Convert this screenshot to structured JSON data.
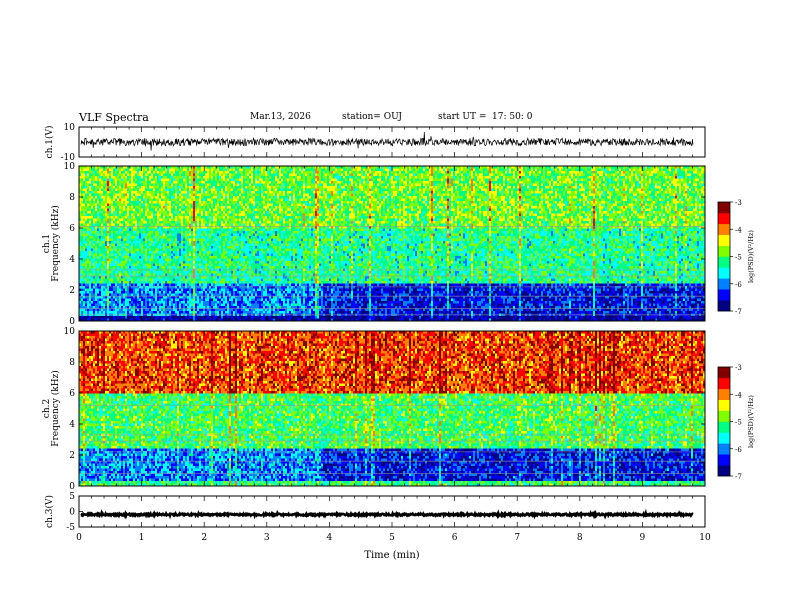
{
  "header": {
    "title": "VLF Spectra",
    "date": "Mar.13, 2026",
    "station": "station= OUJ",
    "start_label": "start  UT  =",
    "start_time": "17: 50: 0"
  },
  "colors": {
    "colormap": [
      "#000080",
      "#0000ff",
      "#0080ff",
      "#00ffff",
      "#00ff80",
      "#80ff00",
      "#ffff00",
      "#ff8000",
      "#ff0000",
      "#800000"
    ]
  },
  "chart_data": [
    {
      "type": "line",
      "panel": "ch1-waveform",
      "ylabel": "ch.1(V)",
      "ylim": [
        -10,
        10
      ],
      "yticks": [
        "10",
        "-10"
      ],
      "xlim": [
        0,
        10
      ],
      "series": [
        {
          "name": "ch.1",
          "mean": 0,
          "amplitude": 2.5
        }
      ]
    },
    {
      "type": "heatmap",
      "panel": "ch1-spectrogram",
      "ylabel": "ch.1\nFrequency (kHz)",
      "ylim": [
        0,
        10
      ],
      "yticks": [
        "0",
        "2",
        "4",
        "6",
        "8",
        "10"
      ],
      "xlim": [
        0,
        10
      ],
      "colorbar": {
        "label": "log(PSD)(V²/Hz)",
        "ticks": [
          "-3",
          "-4",
          "-5",
          "-6",
          "-7"
        ],
        "range": [
          -7,
          -3
        ]
      },
      "bands": [
        {
          "f_range": [
            0,
            0.4
          ],
          "log_psd": -6.8
        },
        {
          "f_range": [
            0.4,
            2.5
          ],
          "log_psd": -6.0
        },
        {
          "f_range": [
            2.5,
            6
          ],
          "log_psd": -5.3
        },
        {
          "f_range": [
            6,
            10
          ],
          "log_psd": -4.9
        }
      ],
      "lines_khz": [
        0.4,
        0.8,
        1.6,
        2.2,
        2.9,
        3.3,
        6.1
      ]
    },
    {
      "type": "heatmap",
      "panel": "ch2-spectrogram",
      "ylabel": "ch.2\nFrequency (kHz)",
      "ylim": [
        0,
        10
      ],
      "yticks": [
        "0",
        "2",
        "4",
        "6",
        "8",
        "10"
      ],
      "xlim": [
        0,
        10
      ],
      "colorbar": {
        "label": "log(PSD)(V²/Hz)",
        "ticks": [
          "-3",
          "-4",
          "-5",
          "-6",
          "-7"
        ],
        "range": [
          -7,
          -3
        ]
      },
      "bands": [
        {
          "f_range": [
            0,
            0.4
          ],
          "log_psd": -5.2
        },
        {
          "f_range": [
            0.4,
            2.5
          ],
          "log_psd": -6.0
        },
        {
          "f_range": [
            2.5,
            6
          ],
          "log_psd": -5.1
        },
        {
          "f_range": [
            6,
            10
          ],
          "log_psd": -3.8
        }
      ],
      "lines_khz": [
        0.8,
        1.6,
        2.2,
        2.9,
        3.3,
        5.2
      ]
    },
    {
      "type": "line",
      "panel": "ch3-waveform",
      "ylabel": "ch.3(V)",
      "ylim": [
        -5,
        5
      ],
      "yticks": [
        "5",
        "0",
        "-5"
      ],
      "xlim": [
        0,
        10
      ],
      "series": [
        {
          "name": "ch.3",
          "mean": -1,
          "amplitude": 0.3
        }
      ]
    }
  ],
  "xaxis": {
    "label": "Time (min)",
    "range": [
      0,
      10
    ],
    "ticks": [
      "0",
      "1",
      "2",
      "3",
      "4",
      "5",
      "6",
      "7",
      "8",
      "9",
      "10"
    ]
  }
}
